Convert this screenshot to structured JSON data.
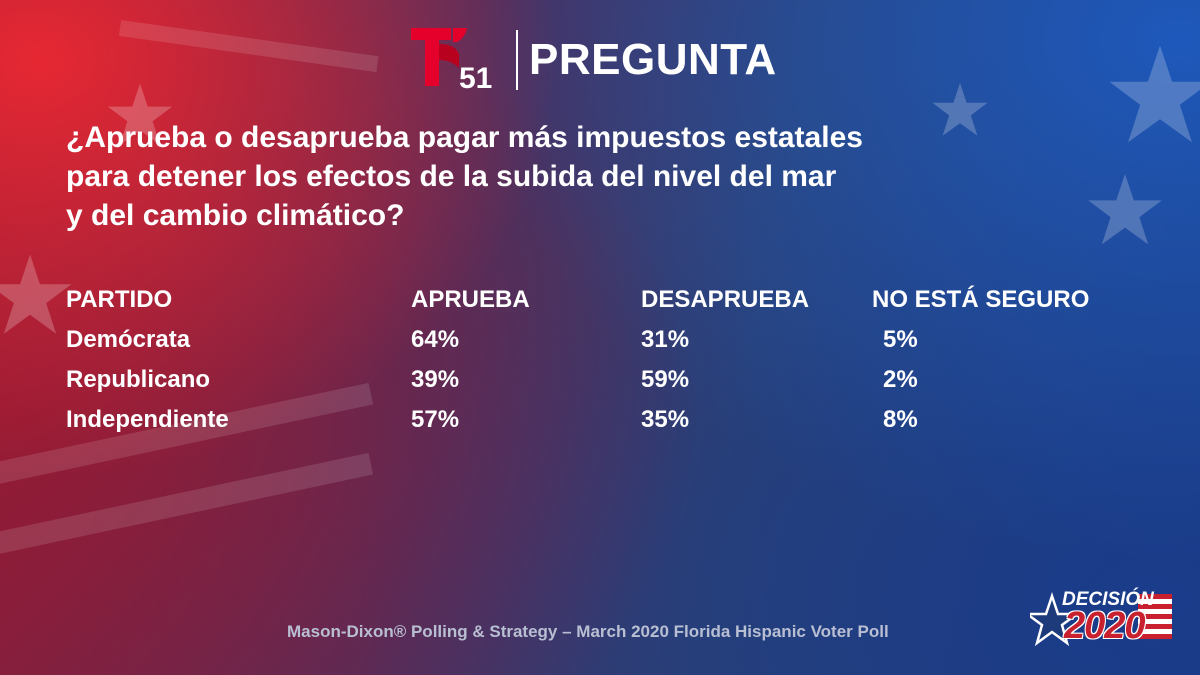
{
  "header": {
    "logo_number": "51",
    "title": "PREGUNTA"
  },
  "question": {
    "lines": [
      "¿Aprueba o desaprueba pagar más impuestos estatales",
      "para detener los efectos de la subida del nivel del mar",
      "y del cambio climático?"
    ]
  },
  "chart_data": {
    "type": "table",
    "columns": [
      "PARTIDO",
      "APRUEBA",
      "DESAPRUEBA",
      "NO ESTÁ SEGURO"
    ],
    "rows": [
      {
        "party": "Demócrata",
        "approve": "64%",
        "disapprove": "31%",
        "unsure": "5%"
      },
      {
        "party": "Republicano",
        "approve": "39%",
        "disapprove": "59%",
        "unsure": "2%"
      },
      {
        "party": "Independiente",
        "approve": "57%",
        "disapprove": "35%",
        "unsure": "8%"
      }
    ]
  },
  "footer": {
    "source": "Mason-Dixon® Polling & Strategy – March 2020 Florida Hispanic Voter Poll",
    "badge_top": "DECISIÓN",
    "badge_year": "2020"
  },
  "colors": {
    "brand_red": "#e4002b",
    "badge_red": "#c8202f",
    "text": "#ffffff",
    "source_text": "#b9bfd2"
  }
}
